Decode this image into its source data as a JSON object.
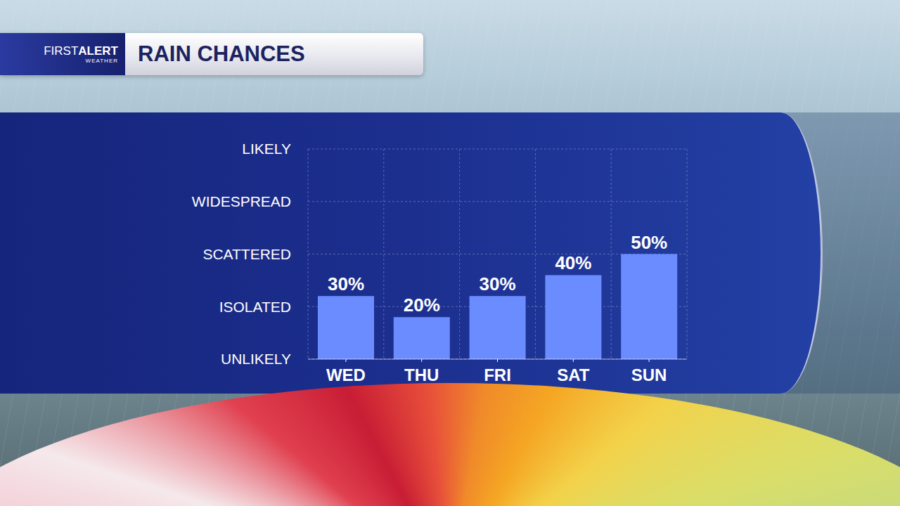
{
  "logo": {
    "first": "FIRST",
    "alert": "ALERT",
    "sub": "WEATHER"
  },
  "chart_data": {
    "type": "bar",
    "title": "RAIN CHANCES",
    "categories": [
      "WED",
      "THU",
      "FRI",
      "SAT",
      "SUN"
    ],
    "values": [
      30,
      20,
      30,
      40,
      50
    ],
    "value_labels": [
      "30%",
      "20%",
      "30%",
      "40%",
      "50%"
    ],
    "color": "#6b8cff",
    "ylim": [
      0,
      100
    ],
    "yticks": [
      {
        "value": 0,
        "label": "UNLIKELY"
      },
      {
        "value": 25,
        "label": "ISOLATED"
      },
      {
        "value": 50,
        "label": "SCATTERED"
      },
      {
        "value": 75,
        "label": "WIDESPREAD"
      },
      {
        "value": 100,
        "label": "LIKELY"
      }
    ],
    "grid": true,
    "data_labels": true
  }
}
